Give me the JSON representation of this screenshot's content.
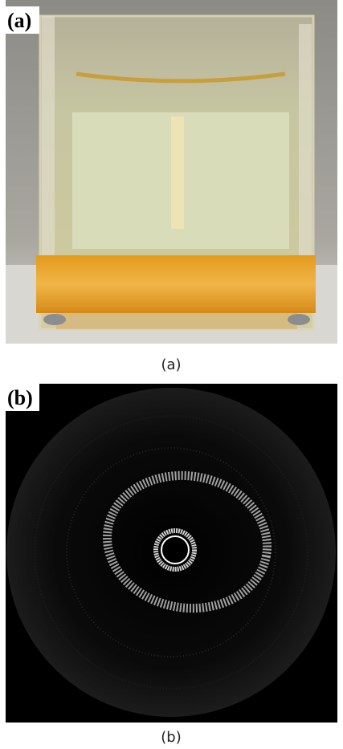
{
  "panels": [
    {
      "label": "(a)",
      "caption": "(a)"
    },
    {
      "label": "(b)",
      "caption": "(b)"
    }
  ]
}
